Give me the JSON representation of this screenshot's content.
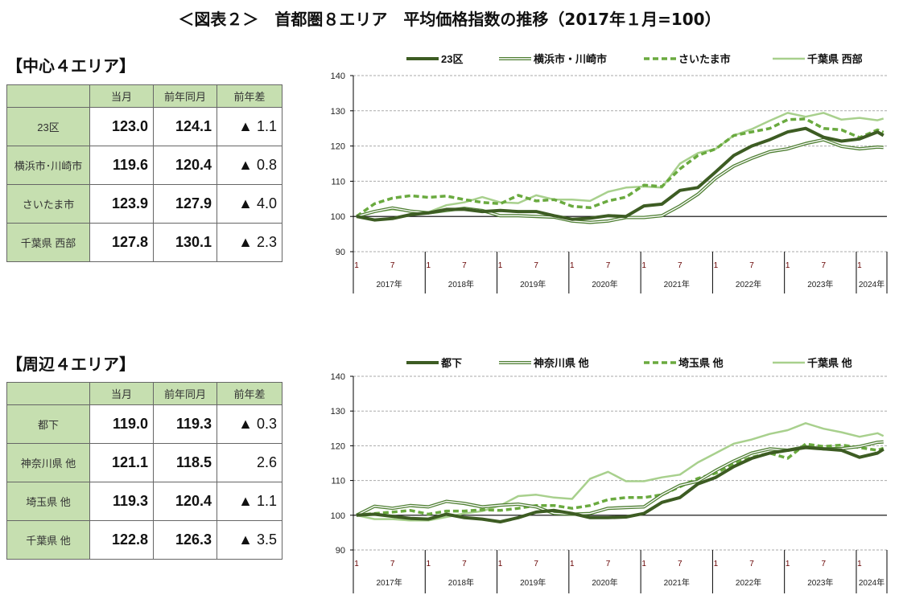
{
  "title": "＜図表２＞　首都圏８エリア　平均価格指数の推移（2017年１月=100）",
  "tables": [
    {
      "heading": "【中心４エリア】",
      "columns": [
        "",
        "当月",
        "前年同月",
        "前年差"
      ],
      "rows": [
        {
          "label": "23区",
          "current": "123.0",
          "prev_year": "124.1",
          "diff": "▲ 1.1"
        },
        {
          "label": "横浜市･川崎市",
          "current": "119.6",
          "prev_year": "120.4",
          "diff": "▲ 0.8"
        },
        {
          "label": "さいたま市",
          "current": "123.9",
          "prev_year": "127.9",
          "diff": "▲ 4.0"
        },
        {
          "label": "千葉県 西部",
          "current": "127.8",
          "prev_year": "130.1",
          "diff": "▲ 2.3"
        }
      ]
    },
    {
      "heading": "【周辺４エリア】",
      "columns": [
        "",
        "当月",
        "前年同月",
        "前年差"
      ],
      "rows": [
        {
          "label": "都下",
          "current": "119.0",
          "prev_year": "119.3",
          "diff": "▲ 0.3"
        },
        {
          "label": "神奈川県 他",
          "current": "121.1",
          "prev_year": "118.5",
          "diff": "2.6"
        },
        {
          "label": "埼玉県 他",
          "current": "119.3",
          "prev_year": "120.4",
          "diff": "▲ 1.1"
        },
        {
          "label": "千葉県 他",
          "current": "122.8",
          "prev_year": "126.3",
          "diff": "▲ 3.5"
        }
      ]
    }
  ],
  "chart_data": [
    {
      "type": "line",
      "ylim": [
        90,
        140
      ],
      "yticks": [
        "90",
        "100",
        "110",
        "120",
        "130",
        "140"
      ],
      "grid": true,
      "legend": "top",
      "month_ticks": [
        "1",
        "7"
      ],
      "year_labels": [
        "2017年",
        "2018年",
        "2019年",
        "2020年",
        "2021年",
        "2022年",
        "2023年",
        "2024年"
      ],
      "x": [
        "2017-01",
        "2017-04",
        "2017-07",
        "2017-10",
        "2018-01",
        "2018-04",
        "2018-07",
        "2018-10",
        "2019-01",
        "2019-04",
        "2019-07",
        "2019-10",
        "2020-01",
        "2020-04",
        "2020-07",
        "2020-10",
        "2021-01",
        "2021-04",
        "2021-07",
        "2021-10",
        "2022-01",
        "2022-04",
        "2022-07",
        "2022-10",
        "2023-01",
        "2023-04",
        "2023-07",
        "2023-10",
        "2024-01",
        "2024-04",
        "2024-05"
      ],
      "series": [
        {
          "name": "23区",
          "style": "thick",
          "color": "#3d5c23",
          "values": [
            100,
            99,
            99.4,
            100.5,
            101,
            102,
            102,
            101.4,
            101.7,
            101.4,
            101.4,
            100.2,
            99.2,
            99.5,
            100.2,
            100,
            103,
            103.5,
            107.4,
            108.2,
            112.7,
            117.3,
            120,
            121.8,
            124,
            125,
            122.5,
            121.4,
            122,
            124,
            123.0
          ]
        },
        {
          "name": "横浜市・川崎市",
          "style": "double",
          "color": "#4f7f33",
          "values": [
            100,
            101.4,
            102.4,
            101.5,
            101,
            101.7,
            102.3,
            101.7,
            100.2,
            100.2,
            100,
            99.8,
            98.7,
            98.3,
            98.7,
            99.7,
            99.7,
            100.2,
            103,
            106.3,
            110.9,
            114.3,
            116.5,
            118.4,
            119.2,
            120.7,
            121.8,
            119.9,
            119.2,
            119.7,
            119.6
          ]
        },
        {
          "name": "さいたま市",
          "style": "dashed",
          "color": "#6aaa3f",
          "values": [
            100,
            103.6,
            105.2,
            105.9,
            105.4,
            105.8,
            104.8,
            104,
            103.6,
            106,
            104.4,
            104.8,
            102.9,
            102.5,
            104.4,
            105.5,
            108.9,
            108.5,
            113.5,
            117.3,
            119.2,
            123,
            124,
            125,
            127.5,
            127.7,
            125,
            124.6,
            122.4,
            124.6,
            123.9
          ]
        },
        {
          "name": "千葉県 西部",
          "style": "light",
          "color": "#a8d08d",
          "values": [
            100,
            101.4,
            102,
            101.5,
            101.2,
            103.2,
            104,
            105.5,
            104,
            103.8,
            106,
            104.8,
            104.8,
            104.4,
            107,
            108.2,
            108.5,
            108.2,
            115,
            118,
            119.2,
            123,
            124.8,
            127.2,
            129.4,
            128.3,
            129.4,
            127.5,
            128,
            127.3,
            127.8
          ]
        }
      ]
    },
    {
      "type": "line",
      "ylim": [
        90,
        140
      ],
      "yticks": [
        "90",
        "100",
        "110",
        "120",
        "130",
        "140"
      ],
      "grid": true,
      "legend": "top",
      "month_ticks": [
        "1",
        "7"
      ],
      "year_labels": [
        "2017年",
        "2018年",
        "2019年",
        "2020年",
        "2021年",
        "2022年",
        "2023年",
        "2024年"
      ],
      "x": [
        "2017-01",
        "2017-04",
        "2017-07",
        "2017-10",
        "2018-01",
        "2018-04",
        "2018-07",
        "2018-10",
        "2019-01",
        "2019-04",
        "2019-07",
        "2019-10",
        "2020-01",
        "2020-04",
        "2020-07",
        "2020-10",
        "2021-01",
        "2021-04",
        "2021-07",
        "2021-10",
        "2022-01",
        "2022-04",
        "2022-07",
        "2022-10",
        "2023-01",
        "2023-04",
        "2023-07",
        "2023-10",
        "2024-01",
        "2024-04",
        "2024-05"
      ],
      "series": [
        {
          "name": "都下",
          "style": "thick",
          "color": "#3d5c23",
          "values": [
            100,
            100.3,
            99.7,
            99.1,
            98.9,
            100.3,
            99.3,
            98.9,
            98.1,
            99.3,
            100.9,
            101.4,
            100.5,
            99.3,
            99.3,
            99.5,
            100.5,
            103.7,
            105.1,
            109,
            110.9,
            114,
            116.4,
            117.9,
            118.7,
            119.5,
            119.1,
            118.7,
            116.7,
            117.9,
            119.0
          ]
        },
        {
          "name": "神奈川県 他",
          "style": "double",
          "color": "#4f7f33",
          "values": [
            100,
            102.6,
            102,
            102.8,
            102.4,
            104,
            103.4,
            102.4,
            102.9,
            103.2,
            102.4,
            100.5,
            100.3,
            100.5,
            102,
            102.2,
            102.4,
            105.9,
            108.6,
            109.8,
            112.9,
            115.6,
            117.9,
            119.1,
            118.7,
            119.7,
            119.1,
            119.2,
            119.8,
            121,
            121.1
          ]
        },
        {
          "name": "埼玉県 他",
          "style": "dashed",
          "color": "#6aaa3f",
          "values": [
            100,
            100.5,
            100.9,
            101.4,
            100.3,
            101.2,
            101.2,
            101.6,
            101.4,
            102,
            102.8,
            102.8,
            102,
            102.8,
            104.5,
            105.1,
            105.1,
            105.9,
            108.2,
            110.6,
            112.1,
            114.8,
            116.7,
            117.9,
            116.4,
            120.5,
            119.8,
            120.2,
            119.5,
            118.7,
            119.3
          ]
        },
        {
          "name": "千葉県 他",
          "style": "light",
          "color": "#a8d08d",
          "values": [
            100,
            98.9,
            98.9,
            98.5,
            98.5,
            99.5,
            100.5,
            101.2,
            102.8,
            105.5,
            105.9,
            105.1,
            104.7,
            110.5,
            112.5,
            109.8,
            109.8,
            110.9,
            111.7,
            115.2,
            117.9,
            120.6,
            121.8,
            123.4,
            124.5,
            126.5,
            124.9,
            123.9,
            122.6,
            123.6,
            122.8
          ]
        }
      ]
    }
  ]
}
